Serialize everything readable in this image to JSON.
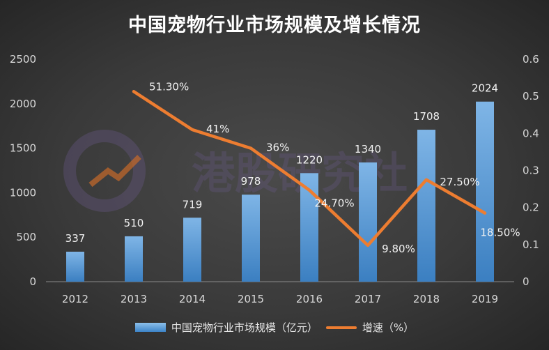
{
  "title": "中国宠物行业市场规模及增长情况",
  "watermark_text": "港股研究社",
  "colors": {
    "bar": "#5b9bd5",
    "line": "#ed7d31",
    "background": "#3a3a3a"
  },
  "chart_data": {
    "type": "bar",
    "title": "中国宠物行业市场规模及增长情况",
    "categories": [
      "2012",
      "2013",
      "2014",
      "2015",
      "2016",
      "2017",
      "2018",
      "2019"
    ],
    "ylim": [
      0,
      2500
    ],
    "y2lim": [
      0,
      0.6
    ],
    "y_ticks": [
      "0",
      "500",
      "1000",
      "1500",
      "2000",
      "2500"
    ],
    "y2_ticks": [
      "0",
      "0.1",
      "0.2",
      "0.3",
      "0.4",
      "0.5",
      "0.6"
    ],
    "legend_position": "bottom",
    "grid": false,
    "series": [
      {
        "name": "中国宠物行业市场规模（亿元）",
        "type": "bar",
        "axis": "left",
        "values": [
          337,
          510,
          719,
          978,
          1220,
          1340,
          1708,
          2024
        ],
        "labels": [
          "337",
          "510",
          "719",
          "978",
          "1220",
          "1340",
          "1708",
          "2024"
        ]
      },
      {
        "name": "增速（%）",
        "type": "line",
        "axis": "right",
        "values": [
          null,
          0.513,
          0.41,
          0.36,
          0.247,
          0.098,
          0.275,
          0.185
        ],
        "labels": [
          "",
          "51.30%",
          "41%",
          "36%",
          "24.70%",
          "9.80%",
          "27.50%",
          "18.50%"
        ]
      }
    ]
  }
}
